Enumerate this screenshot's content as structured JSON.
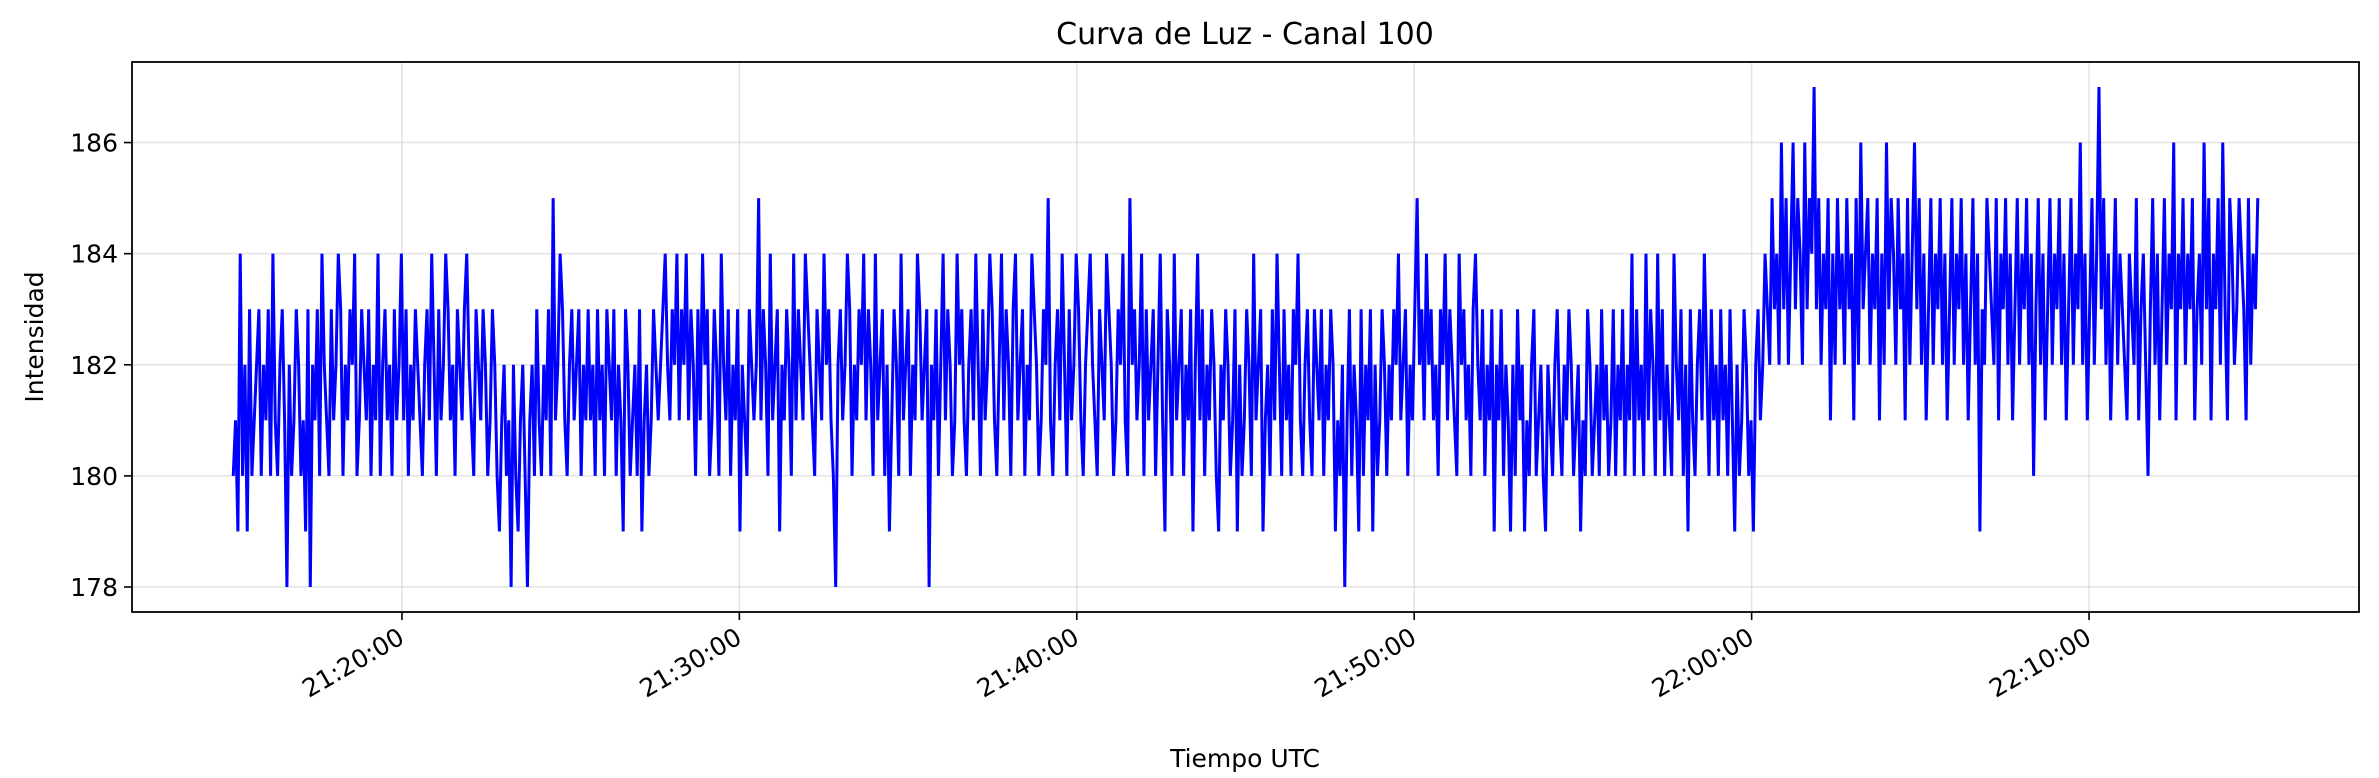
{
  "chart_data": {
    "type": "line",
    "title": "Curva de Luz - Canal 100",
    "xlabel": "Tiempo UTC",
    "ylabel": "Intensidad",
    "grid": true,
    "x_tick_labels": [
      "21:20:00",
      "21:30:00",
      "21:40:00",
      "21:50:00",
      "22:00:00",
      "22:10:00"
    ],
    "x_ticks_seconds_of_day": [
      76800,
      77400,
      78000,
      78600,
      79200,
      79800
    ],
    "y_ticks": [
      178,
      180,
      182,
      184,
      186
    ],
    "xlim": [
      "21:12:00",
      "22:18:00"
    ],
    "ylim": [
      177.55,
      187.45
    ],
    "series": [
      {
        "color": "#0000ff",
        "x_start": "21:15:00",
        "x_end": "22:15:00",
        "values": [
          180,
          181,
          179,
          184,
          180,
          182,
          179,
          183,
          180,
          181,
          182,
          183,
          180,
          182,
          181,
          183,
          180,
          184,
          181,
          180,
          182,
          183,
          181,
          178,
          182,
          180,
          181,
          183,
          182,
          180,
          181,
          179,
          183,
          178,
          182,
          181,
          183,
          180,
          184,
          182,
          181,
          180,
          183,
          181,
          182,
          184,
          183,
          180,
          182,
          181,
          183,
          182,
          184,
          180,
          181,
          183,
          182,
          181,
          183,
          180,
          182,
          181,
          184,
          180,
          182,
          183,
          181,
          182,
          180,
          183,
          181,
          182,
          184,
          181,
          183,
          180,
          182,
          181,
          183,
          182,
          181,
          180,
          182,
          183,
          181,
          184,
          182,
          180,
          183,
          181,
          182,
          184,
          183,
          181,
          182,
          180,
          183,
          182,
          181,
          183,
          184,
          182,
          181,
          180,
          183,
          182,
          181,
          183,
          182,
          180,
          181,
          183,
          182,
          180,
          179,
          181,
          182,
          180,
          181,
          178,
          182,
          180,
          179,
          181,
          182,
          180,
          178,
          181,
          182,
          180,
          183,
          181,
          180,
          182,
          181,
          183,
          180,
          185,
          181,
          182,
          184,
          183,
          181,
          180,
          182,
          183,
          181,
          182,
          183,
          180,
          182,
          181,
          183,
          181,
          182,
          180,
          183,
          181,
          182,
          180,
          183,
          182,
          181,
          183,
          180,
          182,
          181,
          179,
          183,
          182,
          180,
          181,
          182,
          180,
          183,
          179,
          181,
          182,
          180,
          181,
          183,
          182,
          181,
          182,
          183,
          184,
          182,
          181,
          183,
          182,
          184,
          181,
          183,
          182,
          184,
          181,
          183,
          182,
          180,
          183,
          181,
          184,
          182,
          183,
          180,
          181,
          183,
          182,
          180,
          184,
          182,
          181,
          183,
          180,
          182,
          181,
          183,
          179,
          182,
          181,
          180,
          183,
          182,
          181,
          182,
          185,
          181,
          183,
          182,
          180,
          184,
          181,
          182,
          183,
          179,
          182,
          181,
          183,
          182,
          180,
          184,
          181,
          183,
          182,
          181,
          184,
          183,
          182,
          181,
          180,
          183,
          182,
          181,
          184,
          182,
          183,
          181,
          180,
          178,
          182,
          183,
          181,
          182,
          184,
          183,
          180,
          182,
          181,
          183,
          182,
          184,
          181,
          183,
          182,
          180,
          184,
          181,
          182,
          183,
          180,
          182,
          179,
          181,
          183,
          182,
          180,
          184,
          181,
          182,
          183,
          180,
          182,
          181,
          184,
          183,
          181,
          182,
          183,
          178,
          182,
          181,
          183,
          180,
          182,
          184,
          181,
          183,
          182,
          180,
          181,
          184,
          182,
          183,
          181,
          180,
          182,
          183,
          181,
          184,
          182,
          180,
          183,
          181,
          182,
          184,
          183,
          181,
          180,
          182,
          184,
          181,
          183,
          182,
          180,
          183,
          184,
          181,
          182,
          183,
          180,
          182,
          181,
          184,
          183,
          182,
          180,
          181,
          183,
          182,
          185,
          181,
          180,
          182,
          183,
          181,
          184,
          182,
          180,
          183,
          181,
          182,
          184,
          183,
          181,
          180,
          182,
          183,
          184,
          182,
          181,
          180,
          183,
          182,
          181,
          184,
          183,
          182,
          180,
          181,
          183,
          182,
          184,
          181,
          180,
          185,
          182,
          183,
          181,
          182,
          184,
          180,
          183,
          181,
          182,
          183,
          180,
          182,
          184,
          181,
          179,
          183,
          182,
          180,
          184,
          181,
          182,
          183,
          180,
          182,
          181,
          183,
          179,
          182,
          184,
          181,
          183,
          180,
          182,
          181,
          183,
          182,
          180,
          179,
          182,
          181,
          183,
          182,
          180,
          181,
          183,
          179,
          182,
          180,
          181,
          183,
          182,
          180,
          184,
          181,
          182,
          183,
          179,
          181,
          182,
          180,
          183,
          181,
          184,
          182,
          180,
          183,
          181,
          182,
          180,
          183,
          182,
          184,
          181,
          180,
          182,
          183,
          181,
          180,
          183,
          182,
          181,
          183,
          180,
          182,
          181,
          183,
          182,
          179,
          181,
          180,
          182,
          178,
          181,
          183,
          180,
          182,
          181,
          179,
          183,
          180,
          182,
          181,
          183,
          179,
          182,
          180,
          181,
          183,
          182,
          180,
          182,
          181,
          183,
          182,
          184,
          181,
          182,
          183,
          180,
          182,
          181,
          183,
          185,
          182,
          183,
          181,
          184,
          182,
          183,
          181,
          182,
          180,
          183,
          182,
          184,
          181,
          183,
          182,
          181,
          180,
          184,
          182,
          183,
          181,
          182,
          180,
          183,
          184,
          182,
          181,
          183,
          180,
          182,
          181,
          183,
          179,
          182,
          181,
          183,
          180,
          182,
          181,
          179,
          182,
          180,
          183,
          181,
          182,
          179,
          181,
          180,
          182,
          183,
          180,
          181,
          182,
          180,
          179,
          182,
          181,
          180,
          182,
          183,
          181,
          180,
          182,
          181,
          183,
          182,
          180,
          181,
          182,
          179,
          181,
          180,
          183,
          182,
          180,
          181,
          182,
          180,
          183,
          181,
          182,
          180,
          181,
          183,
          180,
          182,
          181,
          183,
          180,
          182,
          181,
          184,
          180,
          183,
          181,
          182,
          180,
          184,
          181,
          183,
          182,
          180,
          184,
          181,
          183,
          180,
          182,
          181,
          180,
          184,
          182,
          181,
          183,
          180,
          182,
          179,
          183,
          181,
          180,
          182,
          183,
          181,
          184,
          182,
          180,
          183,
          181,
          182,
          180,
          183,
          181,
          182,
          180,
          183,
          181,
          179,
          182,
          180,
          181,
          183,
          182,
          180,
          181,
          179,
          182,
          183,
          181,
          182,
          184,
          183,
          182,
          185,
          183,
          184,
          182,
          186,
          183,
          185,
          182,
          184,
          186,
          183,
          185,
          184,
          182,
          186,
          183,
          185,
          184,
          187,
          183,
          185,
          182,
          184,
          183,
          185,
          181,
          184,
          182,
          185,
          183,
          184,
          182,
          185,
          183,
          184,
          181,
          185,
          182,
          186,
          183,
          184,
          185,
          182,
          184,
          183,
          185,
          181,
          184,
          182,
          186,
          183,
          185,
          184,
          182,
          185,
          183,
          184,
          181,
          185,
          182,
          184,
          186,
          183,
          185,
          182,
          184,
          181,
          183,
          185,
          182,
          184,
          183,
          185,
          182,
          184,
          181,
          183,
          185,
          182,
          184,
          183,
          185,
          182,
          184,
          181,
          183,
          185,
          182,
          184,
          179,
          183,
          182,
          185,
          184,
          183,
          182,
          185,
          181,
          184,
          183,
          185,
          182,
          184,
          181,
          183,
          185,
          182,
          184,
          183,
          185,
          182,
          184,
          180,
          183,
          185,
          182,
          184,
          181,
          183,
          185,
          182,
          184,
          183,
          185,
          182,
          184,
          181,
          183,
          185,
          182,
          184,
          183,
          186,
          182,
          184,
          181,
          183,
          185,
          182,
          184,
          187,
          183,
          185,
          182,
          184,
          181,
          183,
          185,
          182,
          184,
          183,
          182,
          181,
          184,
          183,
          182,
          185,
          181,
          183,
          184,
          182,
          180,
          183,
          185,
          182,
          184,
          181,
          183,
          185,
          182,
          184,
          183,
          186,
          181,
          184,
          183,
          185,
          182,
          184,
          183,
          185,
          181,
          183,
          184,
          182,
          186,
          183,
          185,
          181,
          184,
          183,
          185,
          182,
          186,
          183,
          181,
          185,
          184,
          182,
          183,
          185,
          184,
          183,
          181,
          185,
          182,
          184,
          183,
          185
        ]
      }
    ]
  }
}
